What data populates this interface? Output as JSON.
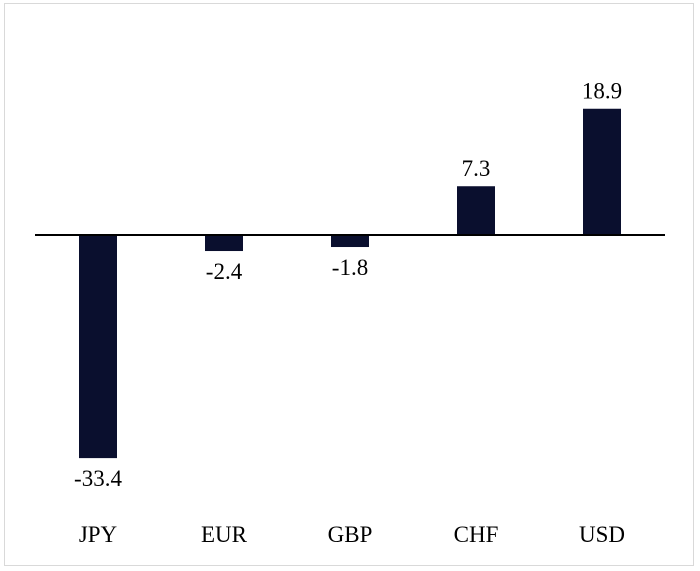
{
  "chart_data": {
    "type": "bar",
    "categories": [
      "JPY",
      "EUR",
      "GBP",
      "CHF",
      "USD"
    ],
    "values": [
      -33.4,
      -2.4,
      -1.8,
      7.3,
      18.9
    ],
    "value_labels": [
      "-33.4",
      "-2.4",
      "-1.8",
      "7.3",
      "18.9"
    ],
    "title": "",
    "xlabel": "",
    "ylabel": "",
    "ylim": [
      -33.4,
      18.9
    ],
    "grid": false,
    "legend": "none",
    "bar_color": "#0a0f2e",
    "axis_color": "#000000"
  }
}
